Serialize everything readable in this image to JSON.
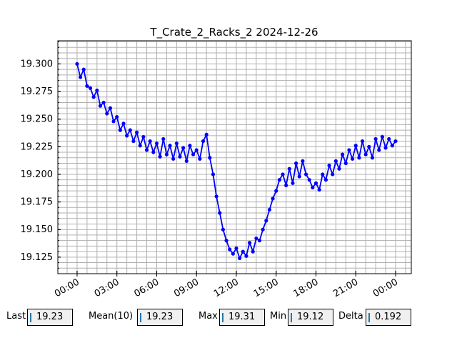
{
  "chart_data": {
    "type": "line",
    "title": "T_Crate_2_Racks_2 2024-12-26",
    "xlabel": "",
    "ylabel": "",
    "xlim": [
      "2024-12-25 22:33",
      "2024-12-27 01:11"
    ],
    "ylim": [
      19.11,
      19.321
    ],
    "grid": "major and minor",
    "marker": "circle",
    "color": "#0000ff",
    "x_ticks": [
      "00:00",
      "03:00",
      "06:00",
      "09:00",
      "12:00",
      "15:00",
      "18:00",
      "21:00",
      "00:00"
    ],
    "y_ticks": [
      "19.125",
      "19.150",
      "19.175",
      "19.200",
      "19.225",
      "19.250",
      "19.275",
      "19.300"
    ],
    "start": "2024-12-26 00:00",
    "interval_minutes": 15,
    "values": [
      19.3,
      19.288,
      19.295,
      19.28,
      19.278,
      19.27,
      19.276,
      19.262,
      19.265,
      19.255,
      19.26,
      19.248,
      19.252,
      19.24,
      19.246,
      19.235,
      19.24,
      19.23,
      19.238,
      19.226,
      19.234,
      19.222,
      19.23,
      19.22,
      19.228,
      19.216,
      19.232,
      19.218,
      19.226,
      19.214,
      19.228,
      19.216,
      19.224,
      19.212,
      19.226,
      19.218,
      19.222,
      19.214,
      19.23,
      19.236,
      19.215,
      19.2,
      19.18,
      19.165,
      19.15,
      19.14,
      19.132,
      19.128,
      19.133,
      19.124,
      19.13,
      19.126,
      19.138,
      19.13,
      19.142,
      19.14,
      19.15,
      19.158,
      19.168,
      19.178,
      19.185,
      19.195,
      19.2,
      19.19,
      19.205,
      19.192,
      19.21,
      19.198,
      19.212,
      19.2,
      19.195,
      19.188,
      19.192,
      19.186,
      19.2,
      19.195,
      19.208,
      19.2,
      19.212,
      19.205,
      19.218,
      19.21,
      19.222,
      19.214,
      19.226,
      19.215,
      19.23,
      19.218,
      19.225,
      19.215,
      19.232,
      19.222,
      19.234,
      19.224,
      19.232,
      19.226,
      19.23
    ]
  },
  "stats": [
    {
      "label": "Last",
      "value": "19.23"
    },
    {
      "label": "Mean(10)",
      "value": "19.23"
    },
    {
      "label": "Max",
      "value": "19.31"
    },
    {
      "label": "Min",
      "value": "19.12"
    },
    {
      "label": "Delta",
      "value": "0.192"
    }
  ]
}
